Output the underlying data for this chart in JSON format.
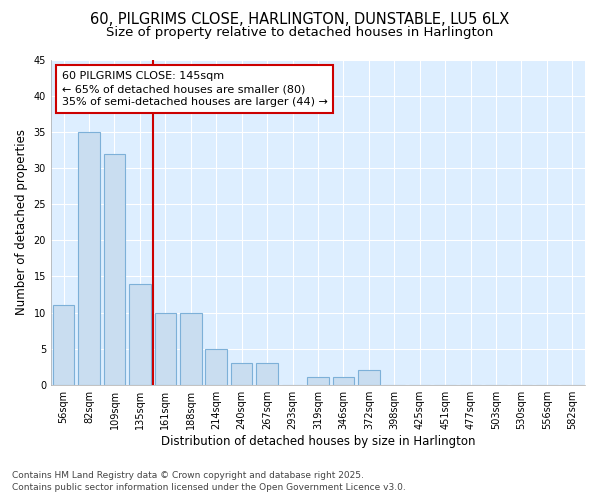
{
  "title_line1": "60, PILGRIMS CLOSE, HARLINGTON, DUNSTABLE, LU5 6LX",
  "title_line2": "Size of property relative to detached houses in Harlington",
  "xlabel": "Distribution of detached houses by size in Harlington",
  "ylabel": "Number of detached properties",
  "categories": [
    "56sqm",
    "82sqm",
    "109sqm",
    "135sqm",
    "161sqm",
    "188sqm",
    "214sqm",
    "240sqm",
    "267sqm",
    "293sqm",
    "319sqm",
    "346sqm",
    "372sqm",
    "398sqm",
    "425sqm",
    "451sqm",
    "477sqm",
    "503sqm",
    "530sqm",
    "556sqm",
    "582sqm"
  ],
  "values": [
    11,
    35,
    32,
    14,
    10,
    10,
    5,
    3,
    3,
    0,
    1,
    1,
    2,
    0,
    0,
    0,
    0,
    0,
    0,
    0,
    0
  ],
  "bar_color": "#c9ddf0",
  "bar_edge_color": "#7db0d8",
  "red_line_x": 3.5,
  "annotation_text": "60 PILGRIMS CLOSE: 145sqm\n← 65% of detached houses are smaller (80)\n35% of semi-detached houses are larger (44) →",
  "annotation_box_facecolor": "#ffffff",
  "annotation_box_edgecolor": "#cc0000",
  "red_line_color": "#cc0000",
  "ylim": [
    0,
    45
  ],
  "yticks": [
    0,
    5,
    10,
    15,
    20,
    25,
    30,
    35,
    40,
    45
  ],
  "fig_bg_color": "#ffffff",
  "plot_bg_color": "#ddeeff",
  "grid_color": "#ffffff",
  "footer_line1": "Contains HM Land Registry data © Crown copyright and database right 2025.",
  "footer_line2": "Contains public sector information licensed under the Open Government Licence v3.0.",
  "title_fontsize": 10.5,
  "subtitle_fontsize": 9.5,
  "tick_fontsize": 7,
  "label_fontsize": 8.5,
  "annotation_fontsize": 8,
  "footer_fontsize": 6.5,
  "bar_width": 0.85
}
